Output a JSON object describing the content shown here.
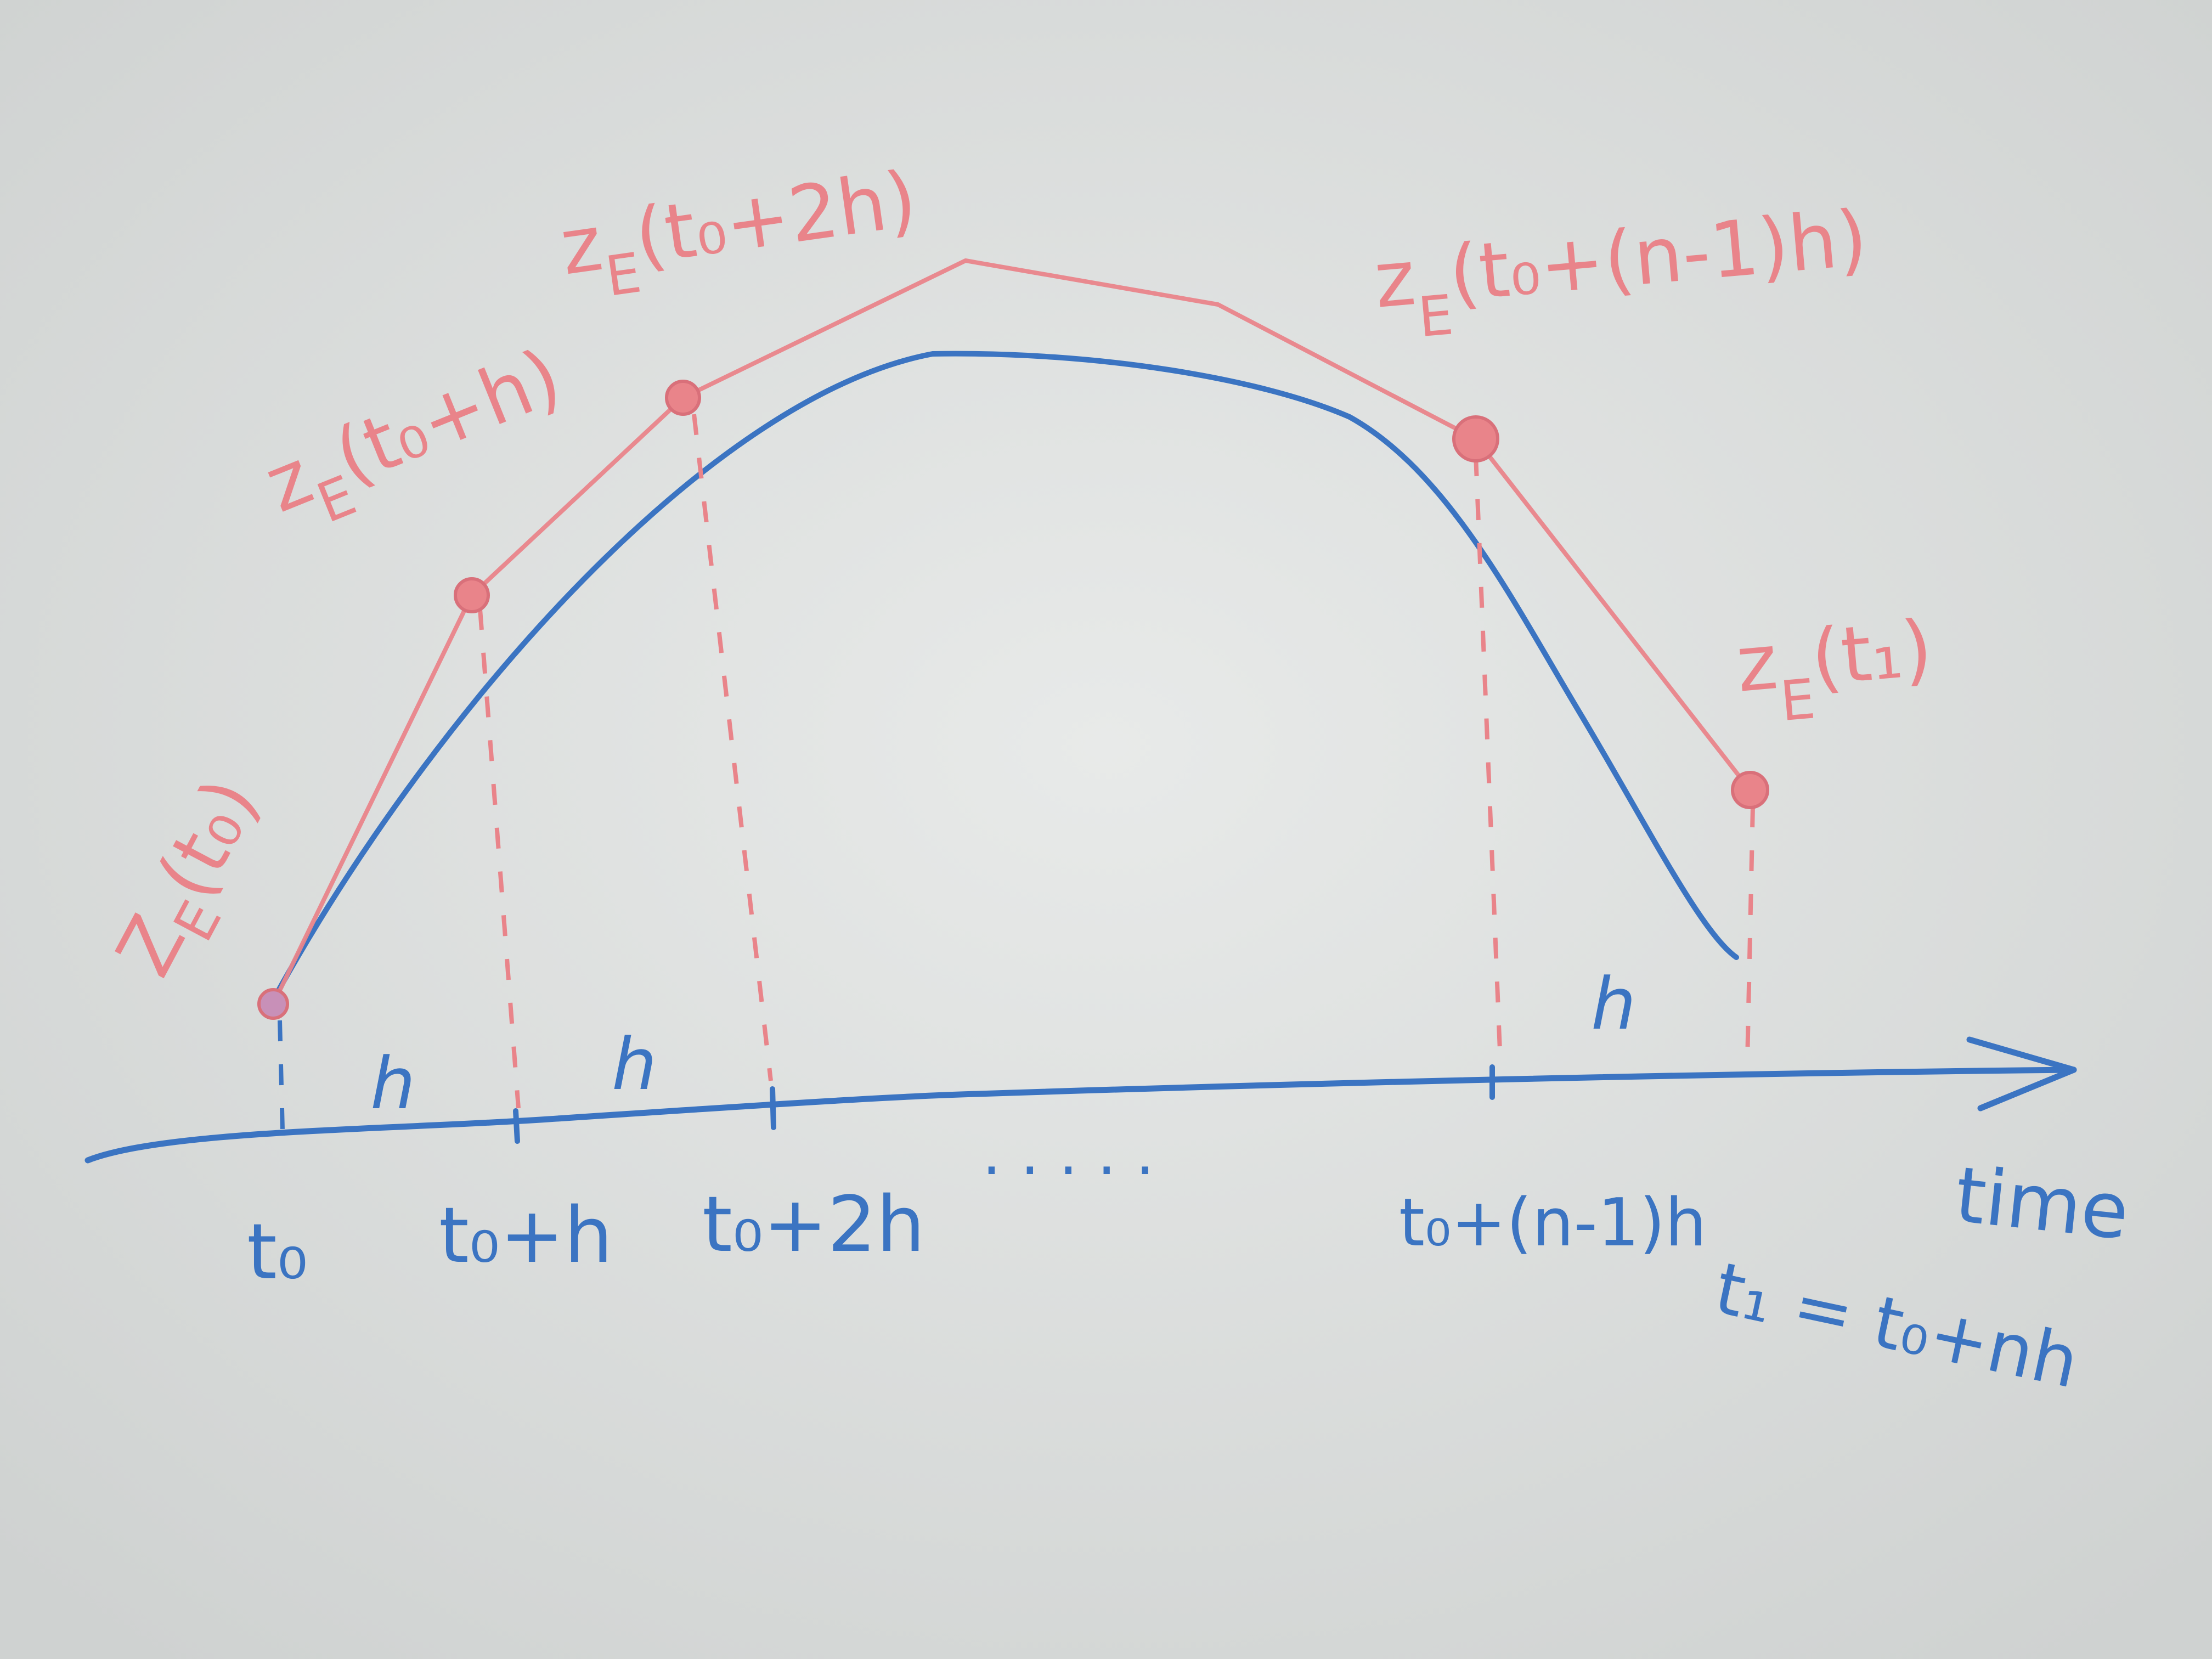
{
  "colors": {
    "board": "#dcdedd",
    "blue_marker": "#3b74c2",
    "red_marker": "#e9848a"
  },
  "axis": {
    "name": "time",
    "ticks": [
      {
        "label": "t₀",
        "mark": "t0"
      },
      {
        "label": "t₀+h",
        "mark": "t0+h"
      },
      {
        "label": "t₀+2h",
        "mark": "t0+2h"
      },
      {
        "label": ". . . . .",
        "mark": "dots"
      },
      {
        "label": "t₀+(n-1)h",
        "mark": "t0+(n-1)h"
      },
      {
        "label": "t₁ = t₀+nh",
        "mark": "t1"
      }
    ],
    "step_labels": [
      "h",
      "h",
      "h"
    ]
  },
  "points": [
    {
      "label": "Z_E(t₀)",
      "base": "Z",
      "sub": "E",
      "arg": "(t₀)"
    },
    {
      "label": "z_E(t₀+h)",
      "base": "z",
      "sub": "E",
      "arg": "(t₀+h)"
    },
    {
      "label": "z_E(t₀+2h)",
      "base": "z",
      "sub": "E",
      "arg": "(t₀+2h)"
    },
    {
      "label": "z_E(t₀+(n-1)h)",
      "base": "z",
      "sub": "E",
      "arg": "(t₀+(n-1)h)"
    },
    {
      "label": "z_E(t₁)",
      "base": "z",
      "sub": "E",
      "arg": "(t₁)"
    }
  ]
}
